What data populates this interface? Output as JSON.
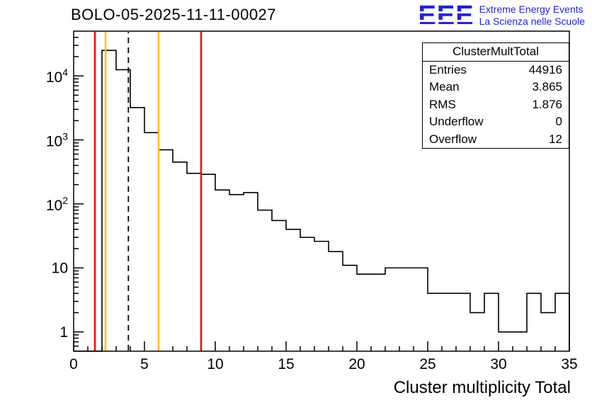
{
  "title": "BOLO-05-2025-11-11-00027",
  "logo": {
    "acronym": "EEE",
    "line1": "Extreme Energy Events",
    "line2": "La Scienza nelle Scuole",
    "color": "#2222dd"
  },
  "stats": {
    "title": "ClusterMultTotal",
    "rows": [
      {
        "label": "Entries",
        "value": "44916"
      },
      {
        "label": "Mean",
        "value": "3.865"
      },
      {
        "label": "RMS",
        "value": "1.876"
      },
      {
        "label": "Underflow",
        "value": "0"
      },
      {
        "label": "Overflow",
        "value": "12"
      }
    ]
  },
  "chart_data": {
    "type": "bar",
    "title": "BOLO-05-2025-11-11-00027",
    "xlabel": "Cluster multiplicity Total",
    "ylabel": "",
    "y_scale": "log",
    "x_range": [
      0,
      35
    ],
    "y_range": [
      0.5,
      50000
    ],
    "bin_width": 1,
    "values": [
      0,
      0,
      25000,
      12500,
      3200,
      1300,
      700,
      450,
      300,
      290,
      165,
      140,
      150,
      80,
      55,
      40,
      30,
      26,
      18,
      11,
      8,
      8,
      10,
      10,
      10,
      4,
      4,
      4,
      2,
      4,
      1,
      1,
      4,
      2,
      4
    ],
    "x_ticks": [
      0,
      5,
      10,
      15,
      20,
      25,
      30,
      35
    ],
    "y_ticks": [
      {
        "v": 1,
        "base": "1",
        "exp": ""
      },
      {
        "v": 10,
        "base": "10",
        "exp": ""
      },
      {
        "v": 100,
        "base": "10",
        "exp": "2"
      },
      {
        "v": 1000,
        "base": "10",
        "exp": "3"
      },
      {
        "v": 10000,
        "base": "10",
        "exp": "4"
      }
    ],
    "line_color": "#000000",
    "grid": false,
    "legend": "none",
    "marker_lines": [
      {
        "x": 1.5,
        "color": "#ff0000",
        "style": "solid",
        "name": "lower-limit-red-line"
      },
      {
        "x": 2.25,
        "color": "#ffbf00",
        "style": "solid",
        "name": "lower-warning-yellow-line"
      },
      {
        "x": 3.865,
        "color": "#000000",
        "style": "dashed",
        "name": "mean-dashed-line"
      },
      {
        "x": 6.0,
        "color": "#ffbf00",
        "style": "solid",
        "name": "upper-warning-yellow-line"
      },
      {
        "x": 9.0,
        "color": "#ff0000",
        "style": "solid",
        "name": "upper-limit-red-line"
      }
    ]
  }
}
